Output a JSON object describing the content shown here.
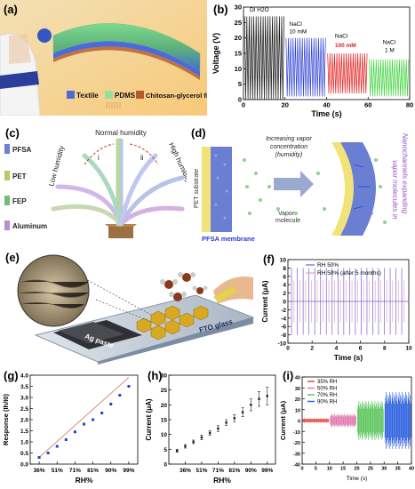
{
  "figure": {
    "panel_labels": [
      "(a)",
      "(b)",
      "(c)",
      "(d)",
      "(e)",
      "(f)",
      "(g)",
      "(h)",
      "(i)"
    ]
  },
  "panel_a": {
    "legend": [
      {
        "label": "Textile",
        "color": "#4b6bd8"
      },
      {
        "label": "PDMS",
        "color": "#8fe3a0"
      },
      {
        "label": "Chitosan-glycerol film",
        "color": "#b55a2a"
      }
    ]
  },
  "panel_c": {
    "legend": [
      {
        "label": "PFSA",
        "color": "#6e7fd6"
      },
      {
        "label": "PET",
        "color": "#b9c96a"
      },
      {
        "label": "FEP",
        "color": "#6fbf7a"
      },
      {
        "label": "Aluminum",
        "color": "#b98ed6"
      }
    ],
    "annotations": {
      "low": "Low humidity",
      "normal": "Normal humidity",
      "high": "High humidity",
      "i": "i",
      "ii": "ii"
    }
  },
  "panel_d": {
    "texts": {
      "substrate": "PET substrate",
      "increasing": "Increasing vapor",
      "concentration": "concentration",
      "humidity": "(humidity)",
      "vapor": "Vapor",
      "molecule": "molecule",
      "membrane": "PFSA membrane",
      "expanding": "Nanochannels expanding",
      "molecules_in": "vapor molecules in"
    }
  },
  "panel_e": {
    "texts": {
      "ag": "Ag paste",
      "fto": "FTO glass"
    }
  },
  "chart_data": [
    {
      "panel": "b",
      "type": "line",
      "ylabel": "Voltage (V)",
      "xlabel": "Time (s)",
      "xlim": [
        0,
        80
      ],
      "ylim": [
        0,
        30
      ],
      "xticks": [
        0,
        20,
        40,
        60,
        80
      ],
      "yticks": [
        0,
        5,
        10,
        15,
        20,
        25,
        30
      ],
      "series": [
        {
          "name": "DI H2O",
          "color": "#111111",
          "x_range": [
            0,
            20
          ],
          "min": 0,
          "max": 27
        },
        {
          "name": "NaCl 10 mM",
          "color": "#2c3fd1",
          "x_range": [
            20,
            40
          ],
          "min": 1,
          "max": 20
        },
        {
          "name": "NaCl 100 mM",
          "color": "#e02020",
          "x_range": [
            40,
            60
          ],
          "min": 2,
          "max": 15
        },
        {
          "name": "NaCl 1 M",
          "color": "#41d341",
          "x_range": [
            60,
            80
          ],
          "min": 1,
          "max": 13
        }
      ],
      "labels": {
        "s1": "DI H",
        "s1sub": "2",
        "s1end": "O",
        "s2a": "NaCl",
        "s2b": "10 mM",
        "s3a": "NaCl",
        "s3b": "100 mM",
        "s4a": "NaCl",
        "s4b": "1 M"
      }
    },
    {
      "panel": "f",
      "type": "line",
      "ylabel": "Current (μA)",
      "xlabel": "Time (s)",
      "xlim": [
        0,
        10
      ],
      "ylim": [
        -10,
        10
      ],
      "xticks": [
        0,
        2,
        4,
        6,
        8,
        10
      ],
      "yticks": [
        -10,
        -8,
        -6,
        -4,
        -2,
        0,
        2,
        4,
        6,
        8,
        10
      ],
      "series": [
        {
          "name": "RH 50%",
          "color": "#7a5fd0",
          "amplitude": 8
        },
        {
          "name": "RH 50% (after 5 months)",
          "color": "#e0a4c0",
          "amplitude": 5
        }
      ]
    },
    {
      "panel": "g",
      "type": "scatter",
      "ylabel": "Response (I",
      "ylabel_sub": "h",
      "ylabel_mid": "/I",
      "ylabel_sub2": "0",
      "ylabel_end": ")",
      "xlabel": "RH%",
      "categories": [
        "36%",
        "51%",
        "71%",
        "81%",
        "90%",
        "99%"
      ],
      "ylim": [
        0,
        4.0
      ],
      "yticks": [
        0.0,
        0.5,
        1.0,
        1.5,
        2.0,
        2.5,
        3.0,
        3.5,
        4.0
      ],
      "points": [
        {
          "x": 0,
          "y": 0.3
        },
        {
          "x": 0.5,
          "y": 0.5
        },
        {
          "x": 1,
          "y": 0.8
        },
        {
          "x": 1.5,
          "y": 1.1
        },
        {
          "x": 2,
          "y": 1.45
        },
        {
          "x": 2.5,
          "y": 1.8
        },
        {
          "x": 3,
          "y": 2.0
        },
        {
          "x": 3.5,
          "y": 2.3
        },
        {
          "x": 4,
          "y": 2.7
        },
        {
          "x": 4.5,
          "y": 3.1
        },
        {
          "x": 5,
          "y": 3.5
        }
      ],
      "fit": {
        "from": [
          0,
          0.3
        ],
        "to": [
          5,
          3.9
        ],
        "color": "#e08a7a"
      },
      "point_color": "#2a3fcf"
    },
    {
      "panel": "h",
      "type": "scatter",
      "ylabel": "Current (μA)",
      "xlabel": "RH%",
      "categories": [
        "36%",
        "51%",
        "71%",
        "81%",
        "90%",
        "99%"
      ],
      "ylim": [
        0,
        30
      ],
      "yticks": [
        0,
        5,
        10,
        15,
        20,
        25,
        30
      ],
      "points": [
        {
          "x": -0.5,
          "y": 4.5,
          "err": 0.5
        },
        {
          "x": 0,
          "y": 6,
          "err": 0.6
        },
        {
          "x": 0.5,
          "y": 7.5,
          "err": 0.6
        },
        {
          "x": 1,
          "y": 9,
          "err": 0.8
        },
        {
          "x": 1.5,
          "y": 10.5,
          "err": 0.8
        },
        {
          "x": 2,
          "y": 12,
          "err": 1
        },
        {
          "x": 2.5,
          "y": 14,
          "err": 1
        },
        {
          "x": 3,
          "y": 15.5,
          "err": 1.2
        },
        {
          "x": 3.5,
          "y": 17.5,
          "err": 1.5
        },
        {
          "x": 4,
          "y": 20,
          "err": 2
        },
        {
          "x": 4.5,
          "y": 22,
          "err": 2.5
        },
        {
          "x": 5,
          "y": 23,
          "err": 3
        }
      ]
    },
    {
      "panel": "i",
      "type": "line",
      "ylabel": "Current (μA)",
      "xlabel": "Time (s)",
      "xlim": [
        0,
        40
      ],
      "ylim": [
        -40,
        40
      ],
      "xticks": [
        0,
        5,
        10,
        15,
        20,
        25,
        30,
        35,
        40
      ],
      "yticks": [
        -40,
        -30,
        -20,
        -10,
        0,
        10,
        20,
        30,
        40
      ],
      "series": [
        {
          "name": "35% RH",
          "color": "#e04a4a",
          "x_range": [
            0,
            10
          ],
          "amplitude": 2
        },
        {
          "name": "50% RH",
          "color": "#e07ab0",
          "x_range": [
            10,
            20
          ],
          "amplitude": 6
        },
        {
          "name": "70% RH",
          "color": "#5bc55b",
          "x_range": [
            20,
            30
          ],
          "amplitude": 18
        },
        {
          "name": "90% RH",
          "color": "#2a5fe0",
          "x_range": [
            30,
            40
          ],
          "amplitude": 26
        }
      ]
    }
  ]
}
